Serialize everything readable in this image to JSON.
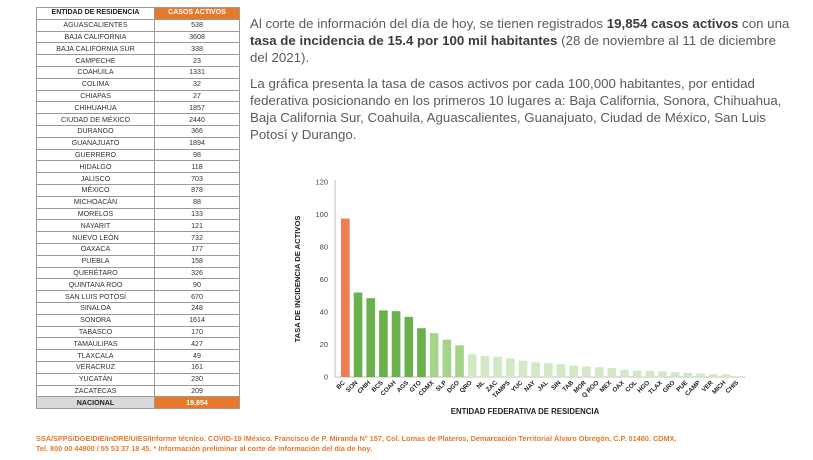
{
  "table": {
    "header_state": "ENTIDAD DE RESIDENCIA",
    "header_cases": "CASOS ACTIVOS",
    "rows": [
      {
        "state": "AGUASCALIENTES",
        "cases": "538"
      },
      {
        "state": "BAJA CALIFORNIA",
        "cases": "3608"
      },
      {
        "state": "BAJA CALIFORNIA SUR",
        "cases": "338"
      },
      {
        "state": "CAMPECHE",
        "cases": "23"
      },
      {
        "state": "COAHUILA",
        "cases": "1331"
      },
      {
        "state": "COLIMA",
        "cases": "32"
      },
      {
        "state": "CHIAPAS",
        "cases": "27"
      },
      {
        "state": "CHIHUAHUA",
        "cases": "1857"
      },
      {
        "state": "CIUDAD DE MÉXICO",
        "cases": "2440"
      },
      {
        "state": "DURANGO",
        "cases": "366"
      },
      {
        "state": "GUANAJUATO",
        "cases": "1894"
      },
      {
        "state": "GUERRERO",
        "cases": "98"
      },
      {
        "state": "HIDALGO",
        "cases": "118"
      },
      {
        "state": "JALISCO",
        "cases": "703"
      },
      {
        "state": "MÉXICO",
        "cases": "878"
      },
      {
        "state": "MICHOACÁN",
        "cases": "88"
      },
      {
        "state": "MORELOS",
        "cases": "133"
      },
      {
        "state": "NAYARIT",
        "cases": "121"
      },
      {
        "state": "NUEVO LEÓN",
        "cases": "732"
      },
      {
        "state": "OAXACA",
        "cases": "177"
      },
      {
        "state": "PUEBLA",
        "cases": "158"
      },
      {
        "state": "QUERÉTARO",
        "cases": "326"
      },
      {
        "state": "QUINTANA ROO",
        "cases": "90"
      },
      {
        "state": "SAN LUIS POTOSÍ",
        "cases": "670"
      },
      {
        "state": "SINALOA",
        "cases": "248"
      },
      {
        "state": "SONORA",
        "cases": "1614"
      },
      {
        "state": "TABASCO",
        "cases": "170"
      },
      {
        "state": "TAMAULIPAS",
        "cases": "427"
      },
      {
        "state": "TLAXCALA",
        "cases": "49"
      },
      {
        "state": "VERACRUZ",
        "cases": "161"
      },
      {
        "state": "YUCATÁN",
        "cases": "230"
      },
      {
        "state": "ZACATECAS",
        "cases": "209"
      }
    ],
    "total_label": "NACIONAL",
    "total_cases": "19,854"
  },
  "text": {
    "p1_a": "Al corte de información del día de hoy, se tienen registrados ",
    "p1_b": "19,854 casos activos",
    "p1_c": " con una ",
    "p1_d": "tasa de incidencia de 15.4 por 100 mil habitantes",
    "p1_e": " (28 de noviembre al 11 de diciembre del 2021).",
    "p2": "La gráfica presenta la tasa de casos activos por cada 100,000 habitantes, por entidad federativa posicionando en los primeros 10 lugares a: Baja California, Sonora, Chihuahua, Baja California Sur, Coahuila, Aguascalientes, Guanajuato, Ciudad de México, San Luis Potosí y Durango."
  },
  "chart_data": {
    "type": "bar",
    "xlabel": "ENTIDAD FEDERATIVA DE RESIDENCIA",
    "ylabel": "TASA DE INCIDENCIA DE ACTIVOS",
    "ylim": [
      0,
      120
    ],
    "yticks": [
      0,
      20,
      40,
      60,
      80,
      100,
      120
    ],
    "grid": false,
    "categories": [
      "BC",
      "SON",
      "CHIH",
      "BCS",
      "COAH",
      "AGS",
      "GTO",
      "CDMX",
      "SLP",
      "DGO",
      "QRO",
      "NL",
      "ZAC",
      "TAMPS",
      "YUC",
      "NAY",
      "JAL",
      "SIN",
      "TAB",
      "MOR",
      "Q ROO",
      "MEX",
      "OAX",
      "COL",
      "HGO",
      "TLAX",
      "GRO",
      "PUE",
      "CAMP",
      "VER",
      "MICH",
      "CHIS"
    ],
    "values": [
      97.5,
      52,
      48.5,
      41,
      40.5,
      37,
      30,
      27,
      23,
      19.5,
      14,
      13,
      12.5,
      11.5,
      10,
      9,
      8.5,
      8,
      7,
      6.5,
      6,
      5.5,
      4.5,
      4,
      3.8,
      3.5,
      3,
      2.5,
      2.2,
      1.8,
      1.7,
      0.5
    ],
    "colors": {
      "top": "#ef7b53",
      "rank2_7": "#6ab04c",
      "rank8_10": "#a6d38a",
      "rest": "#d3e8c4",
      "axis": "#bfbfbf"
    }
  },
  "footer": {
    "line1": "SSA/SPPS/DGE/DIE/InDRE/UIES/Informe técnico. COVID-19 /México. Francisco de P. Miranda N° 157, Col. Lomas de Plateros, Demarcación Territorial Álvaro Obregón, C.P. 01480. CDMX.",
    "line2": "Tel. 800 00 44800 / 55 53 37 18 45. * Información preliminar al corte de información del día de hoy."
  }
}
